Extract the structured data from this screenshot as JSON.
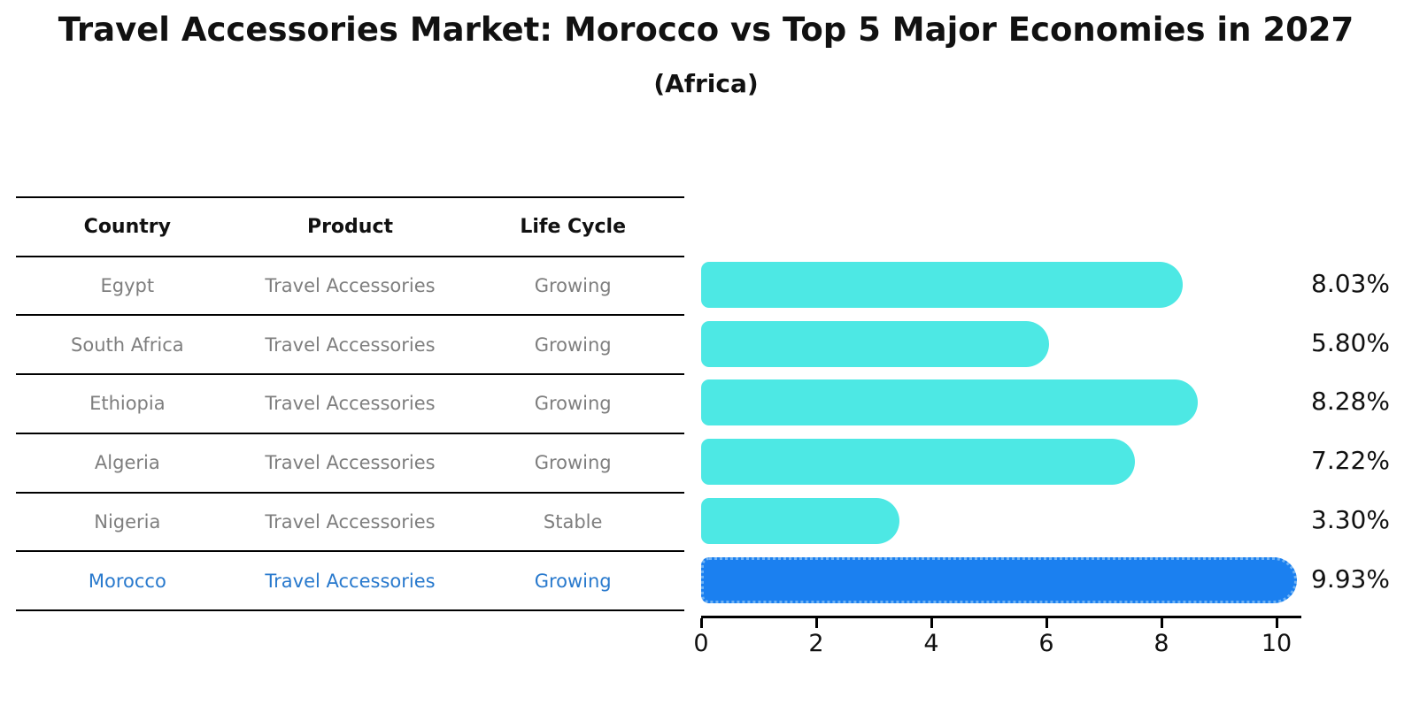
{
  "title": "Travel Accessories Market: Morocco vs Top 5 Major Economies in 2027",
  "subtitle": "(Africa)",
  "table": {
    "headers": [
      "Country",
      "Product",
      "Life Cycle"
    ],
    "rows": [
      {
        "country": "Egypt",
        "product": "Travel Accessories",
        "life_cycle": "Growing"
      },
      {
        "country": "South Africa",
        "product": "Travel Accessories",
        "life_cycle": "Growing"
      },
      {
        "country": "Ethiopia",
        "product": "Travel Accessories",
        "life_cycle": "Growing"
      },
      {
        "country": "Algeria",
        "product": "Travel Accessories",
        "life_cycle": "Growing"
      },
      {
        "country": "Nigeria",
        "product": "Travel Accessories",
        "life_cycle": "Stable"
      },
      {
        "country": "Morocco",
        "product": "Travel Accessories",
        "life_cycle": "Growing"
      }
    ],
    "highlight_row_index": 5
  },
  "chart_data": {
    "type": "bar",
    "orientation": "horizontal",
    "categories": [
      "Egypt",
      "South Africa",
      "Ethiopia",
      "Algeria",
      "Nigeria",
      "Morocco"
    ],
    "values": [
      8.03,
      5.8,
      8.28,
      7.22,
      3.3,
      9.93
    ],
    "value_labels": [
      "8.03%",
      "5.80%",
      "8.28%",
      "7.22%",
      "3.30%",
      "9.93%"
    ],
    "title": "Travel Accessories Market: Morocco vs Top 5 Major Economies in 2027 (Africa)",
    "xlabel": "",
    "ylabel": "",
    "xlim": [
      0,
      10
    ],
    "x_ticks": [
      "0",
      "2",
      "4",
      "6",
      "8",
      "10"
    ],
    "grid": false,
    "legend": false,
    "bar_color": "#4de8e4",
    "highlight_bar_color": "#1b80f0",
    "highlight_index": 5
  },
  "colors": {
    "text_primary": "#111111",
    "text_muted": "#7e7e7e",
    "highlight_text": "#2879cd",
    "bar": "#4de8e4",
    "highlight_bar": "#1b80f0",
    "highlight_bar_dots": "#6fb2f4",
    "axis": "#000000"
  }
}
